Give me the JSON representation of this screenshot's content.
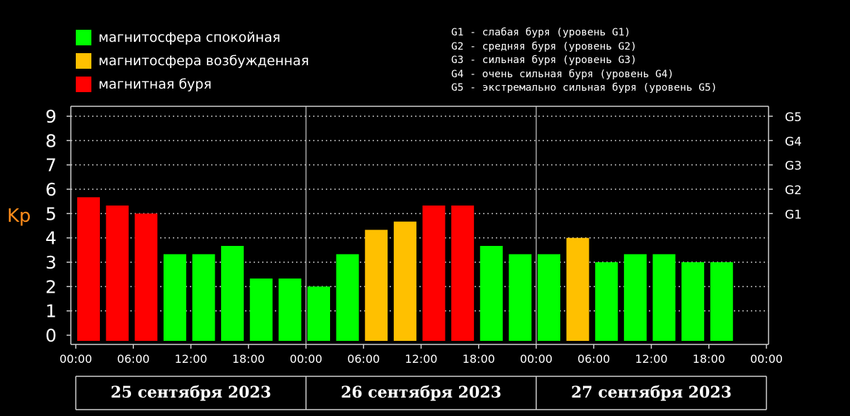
{
  "legend": {
    "items": [
      {
        "label": "магнитосфера спокойная",
        "color": "#00ff00"
      },
      {
        "label": "магнитосфера возбужденная",
        "color": "#ffc000"
      },
      {
        "label": "магнитная буря",
        "color": "#ff0000"
      }
    ]
  },
  "storm_legend": [
    "G1 - слабая буря (уровень G1)",
    "G2 - средняя буря (уровень G2)",
    "G3 - сильная буря (уровень G3)",
    "G4 - очень сильная буря (уровень G4)",
    "G5 - экстремально сильная буря (уровень G5)"
  ],
  "chart_data": {
    "type": "bar",
    "ylabel": "Kp",
    "ylim": [
      0,
      9
    ],
    "yticks": [
      "0",
      "1",
      "2",
      "3",
      "4",
      "5",
      "6",
      "7",
      "8",
      "9"
    ],
    "right_axis_ticks": [
      {
        "value": 5,
        "label": "G1"
      },
      {
        "value": 6,
        "label": "G2"
      },
      {
        "value": 7,
        "label": "G3"
      },
      {
        "value": 8,
        "label": "G4"
      },
      {
        "value": 9,
        "label": "G5"
      }
    ],
    "xtick_labels": [
      "00:00",
      "06:00",
      "12:00",
      "18:00",
      "00:00",
      "06:00",
      "12:00",
      "18:00",
      "00:00",
      "06:00",
      "12:00",
      "18:00",
      "00:00"
    ],
    "days": [
      "25 сентября 2023",
      "26 сентября 2023",
      "27 сентября 2023"
    ],
    "values": [
      5.67,
      5.33,
      5.0,
      3.33,
      3.33,
      3.67,
      2.33,
      2.33,
      2.0,
      3.33,
      4.33,
      4.67,
      5.33,
      5.33,
      3.67,
      3.33,
      3.33,
      4.0,
      3.0,
      3.33,
      3.33,
      3.0,
      3.0
    ],
    "levels": [
      "storm",
      "storm",
      "storm",
      "quiet",
      "quiet",
      "quiet",
      "quiet",
      "quiet",
      "quiet",
      "quiet",
      "active",
      "active",
      "storm",
      "storm",
      "quiet",
      "quiet",
      "quiet",
      "active",
      "quiet",
      "quiet",
      "quiet",
      "quiet",
      "quiet"
    ],
    "level_colors": {
      "quiet": "#00ff00",
      "active": "#ffc000",
      "storm": "#ff0000"
    },
    "ylabel_color": "#ff8c1a",
    "grid": "dotted"
  }
}
